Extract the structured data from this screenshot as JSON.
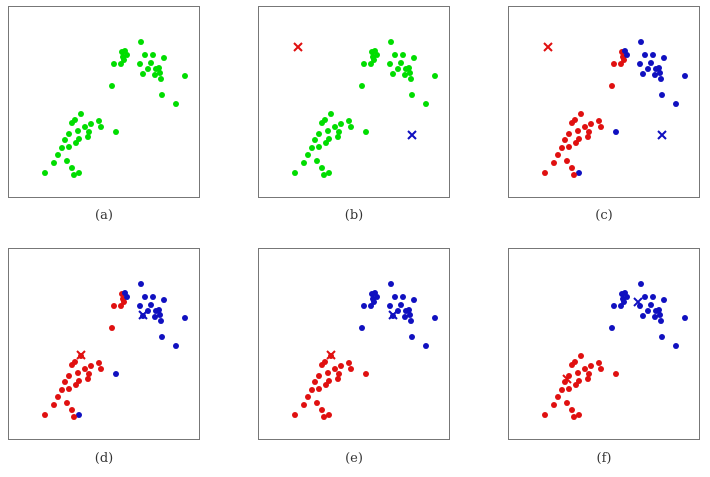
{
  "captions": {
    "a": "(a)",
    "b": "(b)",
    "c": "(c)",
    "d": "(d)",
    "e": "(e)",
    "f": "(f)"
  },
  "colors": {
    "green": "#00dd00",
    "red": "#e01010",
    "blue": "#1010c0"
  },
  "panels": {
    "a": {
      "points": "green",
      "centroids": []
    },
    "b": {
      "points": "green",
      "centroids": [
        {
          "color": "red",
          "x": 39,
          "y": 40
        },
        {
          "color": "blue",
          "x": 153,
          "y": 128
        }
      ]
    },
    "c": {
      "points": "c",
      "centroids": [
        {
          "color": "red",
          "x": 39,
          "y": 40
        },
        {
          "color": "blue",
          "x": 153,
          "y": 128
        }
      ]
    },
    "d": {
      "points": "d",
      "centroids": [
        {
          "color": "red",
          "x": 72,
          "y": 106
        },
        {
          "color": "blue",
          "x": 134,
          "y": 66
        }
      ]
    },
    "e": {
      "points": "e",
      "centroids": [
        {
          "color": "red",
          "x": 72,
          "y": 106
        },
        {
          "color": "blue",
          "x": 134,
          "y": 66
        }
      ]
    },
    "f": {
      "points": "f",
      "centroids": [
        {
          "color": "red",
          "x": 58,
          "y": 130
        },
        {
          "color": "blue",
          "x": 129,
          "y": 53
        }
      ]
    }
  }
}
